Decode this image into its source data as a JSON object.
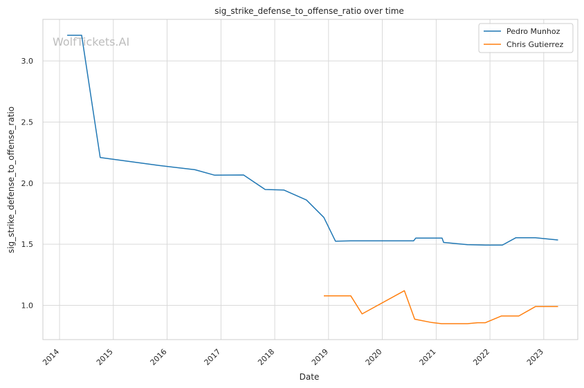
{
  "chart_data": {
    "type": "line",
    "title": "sig_strike_defense_to_offense_ratio over time",
    "xlabel": "Date",
    "ylabel": "sig_strike_defense_to_offense_ratio",
    "watermark": "WolfTickets.AI",
    "xlim": [
      "2013-09-10",
      "2023-08-20"
    ],
    "ylim": [
      0.72,
      3.34
    ],
    "x_ticks": [
      "2014",
      "2015",
      "2016",
      "2017",
      "2018",
      "2019",
      "2020",
      "2021",
      "2022",
      "2023"
    ],
    "y_ticks": [
      "1.0",
      "1.5",
      "2.0",
      "2.5",
      "3.0"
    ],
    "grid": true,
    "legend_position": "top-right",
    "series": [
      {
        "name": "Pedro Munhoz",
        "color": "#1f77b4",
        "points": [
          [
            "2014-02-22",
            3.21
          ],
          [
            "2014-05-31",
            3.21
          ],
          [
            "2014-10-04",
            2.21
          ],
          [
            "2015-11-07",
            2.145
          ],
          [
            "2016-07-08",
            2.11
          ],
          [
            "2016-11-19",
            2.065
          ],
          [
            "2017-06-03",
            2.067
          ],
          [
            "2017-10-28",
            1.948
          ],
          [
            "2018-03-03",
            1.944
          ],
          [
            "2018-08-04",
            1.862
          ],
          [
            "2018-11-30",
            1.72
          ],
          [
            "2019-02-17",
            1.525
          ],
          [
            "2019-06-01",
            1.528
          ],
          [
            "2019-12-01",
            1.528
          ],
          [
            "2020-08-01",
            1.528
          ],
          [
            "2020-08-15",
            1.55
          ],
          [
            "2021-02-10",
            1.55
          ],
          [
            "2021-02-20",
            1.515
          ],
          [
            "2021-08-01",
            1.497
          ],
          [
            "2021-12-01",
            1.493
          ],
          [
            "2022-03-26",
            1.493
          ],
          [
            "2022-06-25",
            1.553
          ],
          [
            "2022-11-05",
            1.553
          ],
          [
            "2023-04-08",
            1.535
          ]
        ]
      },
      {
        "name": "Chris Gutierrez",
        "color": "#ff7f0e",
        "points": [
          [
            "2018-11-30",
            1.078
          ],
          [
            "2019-06-01",
            1.078
          ],
          [
            "2019-08-17",
            0.93
          ],
          [
            "2020-05-30",
            1.12
          ],
          [
            "2020-08-08",
            0.887
          ],
          [
            "2020-12-01",
            0.86
          ],
          [
            "2021-02-06",
            0.85
          ],
          [
            "2021-08-01",
            0.85
          ],
          [
            "2021-10-09",
            0.858
          ],
          [
            "2021-12-01",
            0.858
          ],
          [
            "2022-03-19",
            0.913
          ],
          [
            "2022-07-16",
            0.913
          ],
          [
            "2022-11-05",
            0.99
          ],
          [
            "2023-04-08",
            0.99
          ]
        ]
      }
    ]
  }
}
